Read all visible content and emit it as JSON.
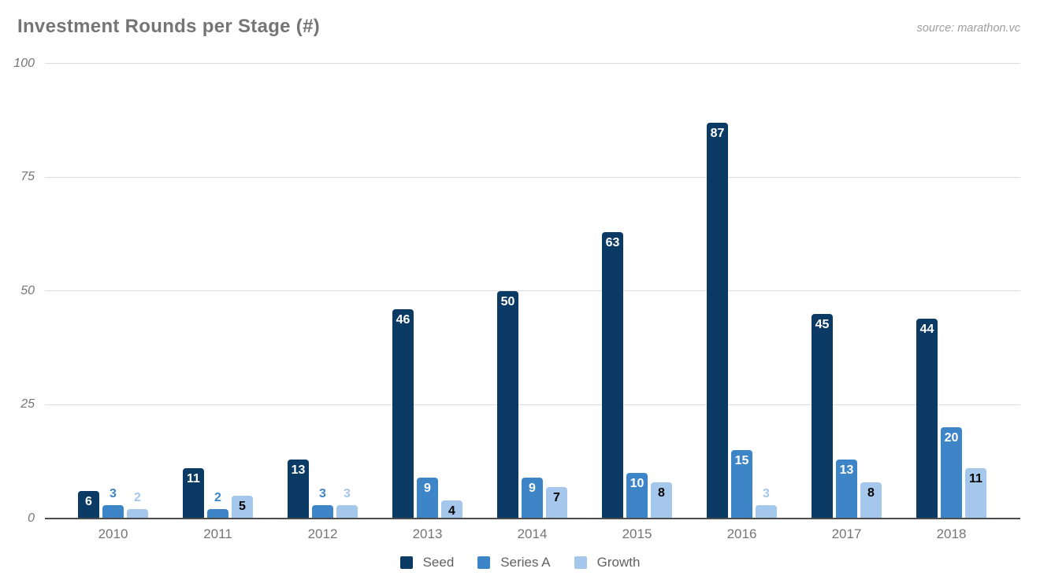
{
  "chart_data": {
    "type": "bar",
    "title": "Investment Rounds per Stage (#)",
    "source": "source: marathon.vc",
    "categories": [
      "2010",
      "2011",
      "2012",
      "2013",
      "2014",
      "2015",
      "2016",
      "2017",
      "2018"
    ],
    "series": [
      {
        "name": "Seed",
        "color": "#0b3a64",
        "label_color_inside": "#ffffff",
        "values": [
          6,
          11,
          13,
          46,
          50,
          63,
          87,
          45,
          44
        ]
      },
      {
        "name": "Series A",
        "color": "#3d85c6",
        "label_color_inside": "#ffffff",
        "values": [
          3,
          2,
          3,
          9,
          9,
          10,
          15,
          13,
          20
        ]
      },
      {
        "name": "Growth",
        "color": "#a4c7eb",
        "label_color_inside": "#000000",
        "values": [
          2,
          5,
          3,
          4,
          7,
          8,
          3,
          8,
          11
        ]
      }
    ],
    "xlabel": "",
    "ylabel": "",
    "ylim": [
      0,
      100
    ],
    "yticks": [
      0,
      25,
      50,
      75,
      100
    ],
    "grid": true,
    "legend_position": "bottom",
    "colors": {
      "gridline": "#dcdcdc",
      "baseline": "#4d4d4d",
      "axis_text": "#757575",
      "title_text": "#757575",
      "source_text": "#9e9e9e",
      "legend_text": "#616161"
    }
  }
}
